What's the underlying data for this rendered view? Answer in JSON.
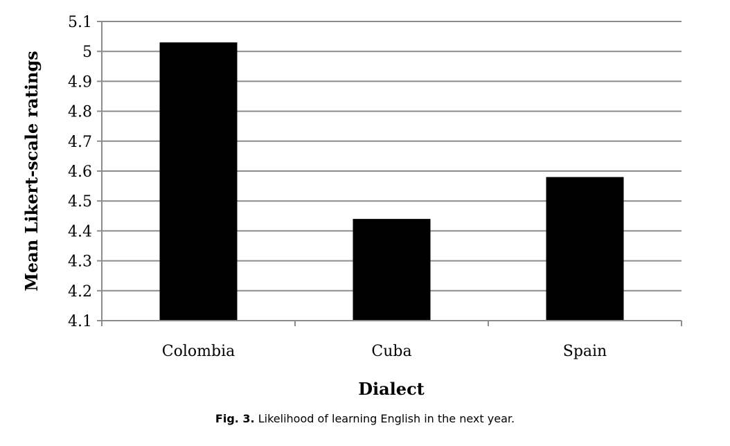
{
  "chart_data": {
    "type": "bar",
    "categories": [
      "Colombia",
      "Cuba",
      "Spain"
    ],
    "values": [
      5.03,
      4.44,
      4.58
    ],
    "xlabel": "Dialect",
    "ylabel": "Mean Likert-scale ratings",
    "ylim": [
      4.1,
      5.1
    ],
    "yticks": [
      "4.1",
      "4.2",
      "4.3",
      "4.4",
      "4.5",
      "4.6",
      "4.7",
      "4.8",
      "4.9",
      "5",
      "5.1"
    ],
    "grid": true,
    "bar_color": "#000000"
  },
  "caption": {
    "figure_label": "Fig. 3.",
    "text": "Likelihood of learning English in the next year."
  }
}
